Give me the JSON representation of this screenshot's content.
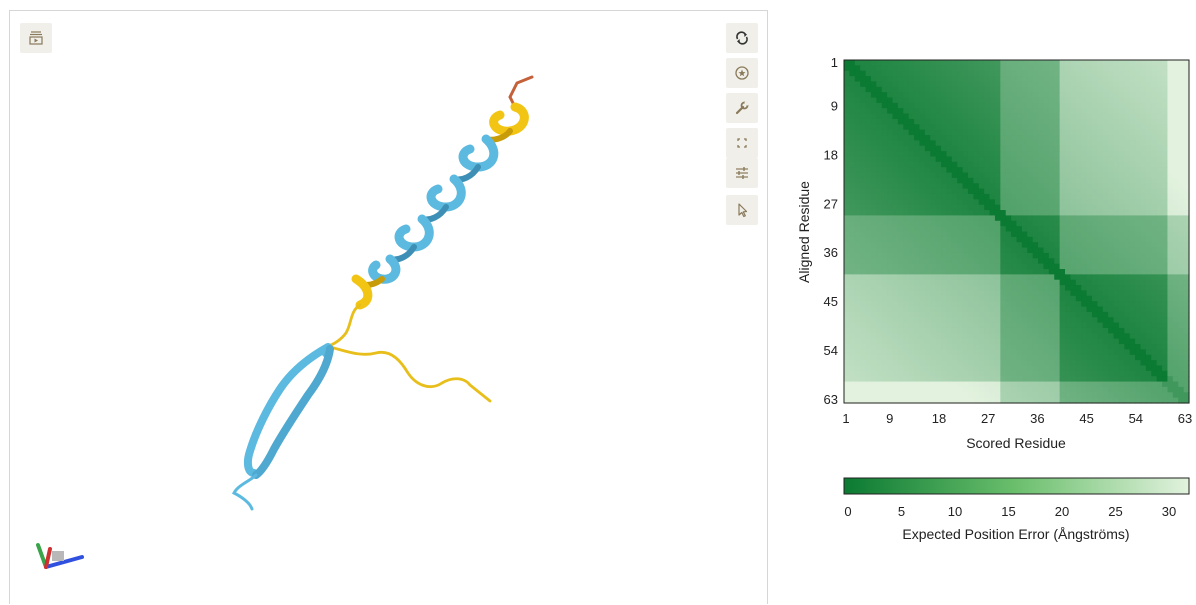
{
  "viewer": {
    "toolbar": [
      {
        "name": "spin-icon"
      },
      {
        "name": "highlight-icon"
      },
      {
        "name": "wrench-icon"
      },
      {
        "name": "fullscreen-icon"
      },
      {
        "name": "settings-sliders-icon"
      },
      {
        "name": "pointer-icon"
      }
    ],
    "top_left_button": {
      "name": "animation-icon"
    },
    "colors": {
      "very_high": "#0053D6",
      "confident": "#65CBF3",
      "low": "#FFDB13",
      "very_low": "#FF7D45"
    }
  },
  "pae": {
    "x_axis_title": "Scored Residue",
    "y_axis_title": "Aligned Residue",
    "x_ticks": [
      "1",
      "9",
      "18",
      "27",
      "36",
      "45",
      "54",
      "63"
    ],
    "y_ticks": [
      "1",
      "9",
      "18",
      "27",
      "36",
      "45",
      "54",
      "63"
    ],
    "colorbar": {
      "ticks": [
        "0",
        "5",
        "10",
        "15",
        "20",
        "25",
        "30"
      ],
      "label": "Expected Position Error (Ångströms)",
      "color_low": "#0b7a32",
      "color_high": "#e2f2de"
    }
  }
}
